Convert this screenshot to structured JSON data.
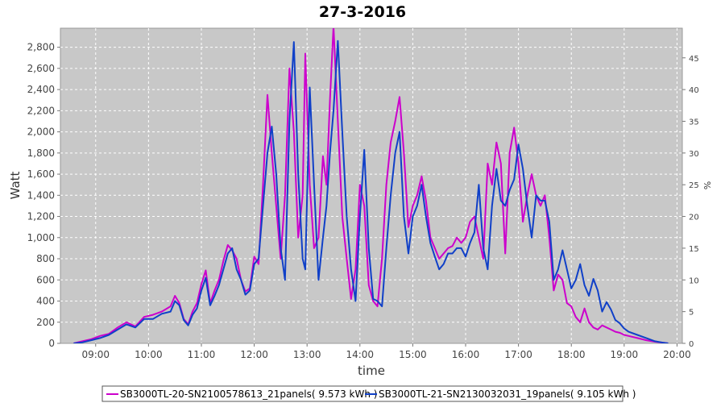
{
  "chart_data": {
    "type": "line",
    "title": "27-3-2016",
    "xlabel": "time",
    "ylabel": "Watt",
    "y2label": "%",
    "xlim": [
      8.333,
      20.1
    ],
    "ylim": [
      0,
      2980
    ],
    "y2lim": [
      0,
      49.67
    ],
    "x_ticks": [
      "09:00",
      "10:00",
      "11:00",
      "12:00",
      "13:00",
      "14:00",
      "15:00",
      "16:00",
      "17:00",
      "18:00",
      "19:00",
      "20:00"
    ],
    "y_ticks": [
      "0",
      "200",
      "400",
      "600",
      "800",
      "1,000",
      "1,200",
      "1,400",
      "1,600",
      "1,800",
      "2,000",
      "2,200",
      "2,400",
      "2,600",
      "2,800"
    ],
    "y2_ticks": [
      "0",
      "5",
      "10",
      "15",
      "20",
      "25",
      "30",
      "35",
      "40",
      "45"
    ],
    "grid": true,
    "background": "#c8c8c8",
    "legend_position": "bottom",
    "series": [
      {
        "name": "SB3000TL-20-SN2100578613_21panels( 9.573 kWh )",
        "color": "#cc00cc",
        "points": [
          [
            8.583,
            0
          ],
          [
            8.75,
            20
          ],
          [
            8.917,
            40
          ],
          [
            9.083,
            70
          ],
          [
            9.25,
            90
          ],
          [
            9.417,
            150
          ],
          [
            9.583,
            200
          ],
          [
            9.75,
            160
          ],
          [
            9.917,
            250
          ],
          [
            10.083,
            270
          ],
          [
            10.25,
            300
          ],
          [
            10.417,
            350
          ],
          [
            10.5,
            450
          ],
          [
            10.583,
            380
          ],
          [
            10.667,
            230
          ],
          [
            10.75,
            180
          ],
          [
            10.833,
            300
          ],
          [
            10.917,
            380
          ],
          [
            11.0,
            560
          ],
          [
            11.083,
            690
          ],
          [
            11.167,
            380
          ],
          [
            11.25,
            500
          ],
          [
            11.333,
            600
          ],
          [
            11.417,
            780
          ],
          [
            11.5,
            930
          ],
          [
            11.583,
            880
          ],
          [
            11.667,
            800
          ],
          [
            11.75,
            600
          ],
          [
            11.833,
            490
          ],
          [
            11.917,
            520
          ],
          [
            12.0,
            820
          ],
          [
            12.083,
            750
          ],
          [
            12.167,
            1500
          ],
          [
            12.25,
            2350
          ],
          [
            12.333,
            1800
          ],
          [
            12.417,
            1300
          ],
          [
            12.5,
            800
          ],
          [
            12.583,
            1400
          ],
          [
            12.667,
            2600
          ],
          [
            12.75,
            2000
          ],
          [
            12.833,
            1000
          ],
          [
            12.917,
            1400
          ],
          [
            12.967,
            2740
          ],
          [
            13.05,
            1500
          ],
          [
            13.133,
            900
          ],
          [
            13.217,
            1000
          ],
          [
            13.3,
            1770
          ],
          [
            13.367,
            1500
          ],
          [
            13.433,
            2300
          ],
          [
            13.5,
            3000
          ],
          [
            13.583,
            2100
          ],
          [
            13.667,
            1200
          ],
          [
            13.75,
            800
          ],
          [
            13.833,
            420
          ],
          [
            13.917,
            700
          ],
          [
            14.0,
            1500
          ],
          [
            14.083,
            1300
          ],
          [
            14.167,
            550
          ],
          [
            14.25,
            400
          ],
          [
            14.333,
            350
          ],
          [
            14.417,
            800
          ],
          [
            14.5,
            1500
          ],
          [
            14.583,
            1900
          ],
          [
            14.667,
            2100
          ],
          [
            14.75,
            2330
          ],
          [
            14.833,
            1800
          ],
          [
            14.917,
            1100
          ],
          [
            15.0,
            1300
          ],
          [
            15.083,
            1400
          ],
          [
            15.167,
            1580
          ],
          [
            15.25,
            1350
          ],
          [
            15.333,
            1000
          ],
          [
            15.417,
            900
          ],
          [
            15.5,
            800
          ],
          [
            15.583,
            850
          ],
          [
            15.667,
            900
          ],
          [
            15.75,
            920
          ],
          [
            15.833,
            1000
          ],
          [
            15.917,
            950
          ],
          [
            16.0,
            1000
          ],
          [
            16.083,
            1150
          ],
          [
            16.167,
            1200
          ],
          [
            16.25,
            1000
          ],
          [
            16.333,
            800
          ],
          [
            16.417,
            1700
          ],
          [
            16.5,
            1500
          ],
          [
            16.583,
            1900
          ],
          [
            16.667,
            1700
          ],
          [
            16.75,
            850
          ],
          [
            16.833,
            1800
          ],
          [
            16.917,
            2040
          ],
          [
            17.0,
            1700
          ],
          [
            17.083,
            1150
          ],
          [
            17.167,
            1400
          ],
          [
            17.25,
            1600
          ],
          [
            17.333,
            1400
          ],
          [
            17.417,
            1300
          ],
          [
            17.5,
            1400
          ],
          [
            17.583,
            1000
          ],
          [
            17.667,
            500
          ],
          [
            17.75,
            650
          ],
          [
            17.833,
            600
          ],
          [
            17.917,
            380
          ],
          [
            18.0,
            350
          ],
          [
            18.083,
            250
          ],
          [
            18.167,
            200
          ],
          [
            18.25,
            330
          ],
          [
            18.333,
            200
          ],
          [
            18.417,
            150
          ],
          [
            18.5,
            130
          ],
          [
            18.583,
            170
          ],
          [
            18.667,
            150
          ],
          [
            18.75,
            130
          ],
          [
            18.833,
            110
          ],
          [
            18.917,
            100
          ],
          [
            19.0,
            80
          ],
          [
            19.083,
            70
          ],
          [
            19.25,
            50
          ],
          [
            19.417,
            30
          ],
          [
            19.583,
            15
          ],
          [
            19.75,
            5
          ],
          [
            19.833,
            0
          ]
        ]
      },
      {
        "name": "SB3000TL-21-SN2130032031_19panels( 9.105 kWh )",
        "color": "#1040c8",
        "points": [
          [
            8.583,
            0
          ],
          [
            8.75,
            10
          ],
          [
            8.917,
            30
          ],
          [
            9.083,
            50
          ],
          [
            9.25,
            80
          ],
          [
            9.417,
            130
          ],
          [
            9.583,
            180
          ],
          [
            9.75,
            150
          ],
          [
            9.917,
            230
          ],
          [
            10.083,
            230
          ],
          [
            10.25,
            280
          ],
          [
            10.417,
            300
          ],
          [
            10.5,
            400
          ],
          [
            10.583,
            360
          ],
          [
            10.667,
            220
          ],
          [
            10.75,
            170
          ],
          [
            10.833,
            270
          ],
          [
            10.917,
            330
          ],
          [
            11.0,
            500
          ],
          [
            11.083,
            620
          ],
          [
            11.167,
            360
          ],
          [
            11.25,
            450
          ],
          [
            11.333,
            550
          ],
          [
            11.417,
            700
          ],
          [
            11.5,
            850
          ],
          [
            11.583,
            900
          ],
          [
            11.667,
            700
          ],
          [
            11.75,
            600
          ],
          [
            11.833,
            460
          ],
          [
            11.917,
            500
          ],
          [
            12.0,
            750
          ],
          [
            12.083,
            800
          ],
          [
            12.167,
            1300
          ],
          [
            12.25,
            1800
          ],
          [
            12.333,
            2050
          ],
          [
            12.417,
            1600
          ],
          [
            12.5,
            900
          ],
          [
            12.583,
            600
          ],
          [
            12.667,
            2100
          ],
          [
            12.75,
            2850
          ],
          [
            12.833,
            1600
          ],
          [
            12.917,
            800
          ],
          [
            12.967,
            700
          ],
          [
            13.05,
            2420
          ],
          [
            13.133,
            1500
          ],
          [
            13.217,
            600
          ],
          [
            13.3,
            1000
          ],
          [
            13.367,
            1300
          ],
          [
            13.433,
            1800
          ],
          [
            13.5,
            2200
          ],
          [
            13.583,
            2860
          ],
          [
            13.667,
            2000
          ],
          [
            13.75,
            1200
          ],
          [
            13.833,
            700
          ],
          [
            13.917,
            400
          ],
          [
            14.0,
            1200
          ],
          [
            14.083,
            1830
          ],
          [
            14.167,
            900
          ],
          [
            14.25,
            420
          ],
          [
            14.333,
            400
          ],
          [
            14.417,
            350
          ],
          [
            14.5,
            900
          ],
          [
            14.583,
            1400
          ],
          [
            14.667,
            1800
          ],
          [
            14.75,
            2000
          ],
          [
            14.833,
            1200
          ],
          [
            14.917,
            850
          ],
          [
            15.0,
            1200
          ],
          [
            15.083,
            1300
          ],
          [
            15.167,
            1500
          ],
          [
            15.25,
            1200
          ],
          [
            15.333,
            950
          ],
          [
            15.417,
            820
          ],
          [
            15.5,
            700
          ],
          [
            15.583,
            750
          ],
          [
            15.667,
            850
          ],
          [
            15.75,
            850
          ],
          [
            15.833,
            900
          ],
          [
            15.917,
            900
          ],
          [
            16.0,
            820
          ],
          [
            16.083,
            950
          ],
          [
            16.167,
            1050
          ],
          [
            16.25,
            1500
          ],
          [
            16.333,
            900
          ],
          [
            16.417,
            700
          ],
          [
            16.5,
            1300
          ],
          [
            16.583,
            1650
          ],
          [
            16.667,
            1350
          ],
          [
            16.75,
            1300
          ],
          [
            16.833,
            1450
          ],
          [
            16.917,
            1550
          ],
          [
            17.0,
            1880
          ],
          [
            17.083,
            1650
          ],
          [
            17.167,
            1300
          ],
          [
            17.25,
            1000
          ],
          [
            17.333,
            1400
          ],
          [
            17.417,
            1350
          ],
          [
            17.5,
            1350
          ],
          [
            17.583,
            1150
          ],
          [
            17.667,
            600
          ],
          [
            17.75,
            700
          ],
          [
            17.833,
            880
          ],
          [
            17.917,
            700
          ],
          [
            18.0,
            520
          ],
          [
            18.083,
            600
          ],
          [
            18.167,
            750
          ],
          [
            18.25,
            550
          ],
          [
            18.333,
            450
          ],
          [
            18.417,
            610
          ],
          [
            18.5,
            500
          ],
          [
            18.583,
            300
          ],
          [
            18.667,
            390
          ],
          [
            18.75,
            320
          ],
          [
            18.833,
            220
          ],
          [
            18.917,
            190
          ],
          [
            19.0,
            140
          ],
          [
            19.083,
            110
          ],
          [
            19.25,
            80
          ],
          [
            19.417,
            50
          ],
          [
            19.583,
            20
          ],
          [
            19.75,
            5
          ],
          [
            19.833,
            0
          ]
        ]
      }
    ]
  }
}
